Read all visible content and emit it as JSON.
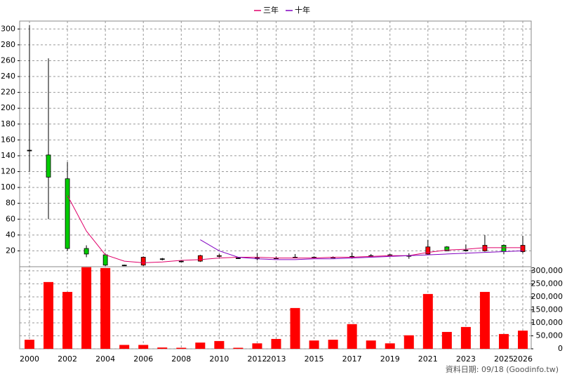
{
  "chart_data": {
    "type": "candlestick",
    "categories": [
      "2000",
      null,
      "2002",
      null,
      "2004",
      null,
      "2006",
      null,
      "2008",
      null,
      "2010",
      null,
      "2012",
      "2013",
      null,
      "2015",
      null,
      "2017",
      null,
      "2019",
      null,
      "2021",
      null,
      "2023",
      null,
      "2025",
      "2026"
    ],
    "open": [
      147,
      141,
      111,
      23,
      15,
      2,
      2,
      10,
      7,
      7,
      13,
      11,
      10,
      11,
      12,
      12,
      12,
      13,
      14,
      15,
      14,
      16,
      25,
      21,
      20,
      27,
      19
    ],
    "high": [
      305,
      263,
      132,
      27,
      16,
      2.5,
      13,
      11,
      8,
      15,
      16,
      12,
      17,
      13,
      16,
      13,
      13,
      18,
      16,
      16,
      17,
      34,
      26,
      28,
      40,
      28,
      39
    ],
    "low": [
      120,
      60,
      20,
      12,
      1,
      1.5,
      1,
      8,
      6,
      6,
      12,
      10,
      8,
      10,
      11,
      11,
      11,
      11,
      13,
      14,
      10,
      15,
      20,
      19,
      19,
      16,
      17
    ],
    "close": [
      147,
      113,
      23,
      16,
      2,
      2,
      12,
      10,
      7,
      14,
      14,
      11,
      11,
      11,
      12,
      12,
      12,
      13,
      14,
      15,
      14,
      25,
      20,
      21,
      27,
      19,
      27
    ],
    "up_color": "#ff0000",
    "down_color": "#00cc00",
    "series": [
      {
        "name": "三年",
        "color": "#e0006a",
        "values": [
          null,
          null,
          90,
          45,
          15,
          7,
          5,
          6,
          8,
          9,
          11,
          12,
          12,
          11,
          11,
          11,
          12,
          12,
          13,
          14,
          14,
          18,
          21,
          22,
          24,
          24,
          24
        ]
      },
      {
        "name": "十年",
        "color": "#8000c0",
        "values": [
          null,
          null,
          null,
          null,
          null,
          null,
          null,
          null,
          null,
          34,
          20,
          12,
          10,
          9,
          9,
          10,
          10,
          11,
          12,
          13,
          14,
          15,
          16,
          17,
          18,
          19,
          20
        ]
      }
    ],
    "volume": {
      "axis": "y2",
      "color": "#ff0000",
      "values": [
        35000,
        257000,
        219000,
        314000,
        311000,
        15000,
        15000,
        5000,
        4000,
        24000,
        30000,
        4000,
        21000,
        38000,
        157000,
        32000,
        35000,
        95000,
        32000,
        21000,
        52000,
        211000,
        65000,
        84000,
        219000,
        57000,
        70000
      ]
    },
    "ylim": [
      0,
      310
    ],
    "yticks": [
      20,
      40,
      60,
      80,
      100,
      120,
      140,
      160,
      180,
      200,
      220,
      240,
      260,
      280,
      300
    ],
    "y2lim": [
      0,
      316000
    ],
    "y2ticks": [
      0,
      {
        "value": 50000,
        "label": "50,000"
      },
      {
        "value": 100000,
        "label": "100,000"
      },
      {
        "value": 150000,
        "label": "150,000"
      },
      {
        "value": 200000,
        "label": "200,000"
      },
      {
        "value": 250000,
        "label": "250,000"
      },
      {
        "value": 300000,
        "label": "300,000"
      }
    ],
    "grid": true,
    "annotation": "資料日期: 09/18  (Goodinfo.tw)"
  }
}
